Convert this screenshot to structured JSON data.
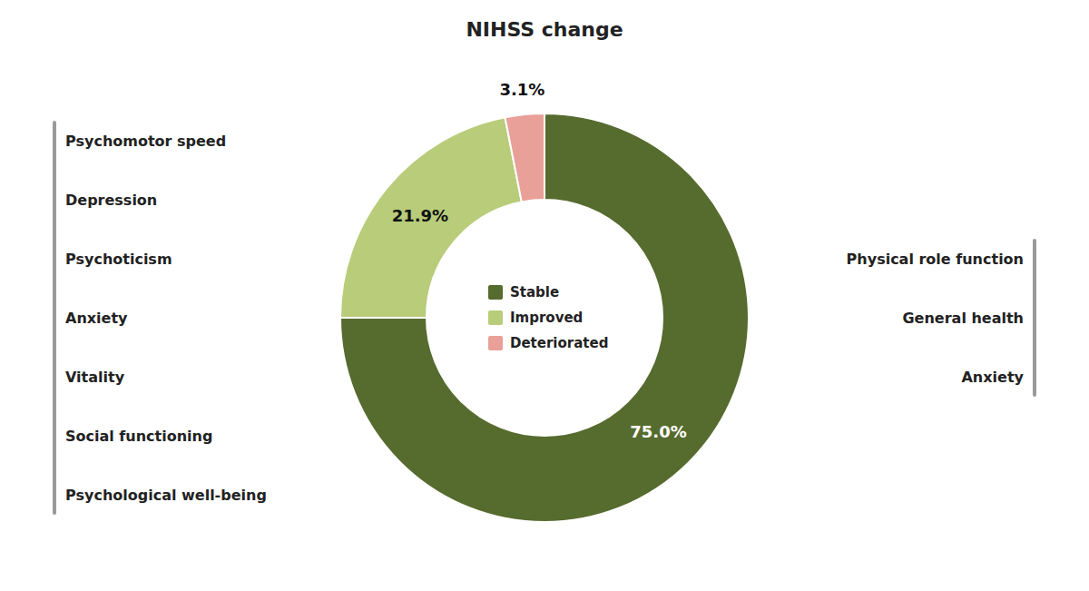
{
  "chart_data": {
    "type": "pie",
    "title": "NIHSS change",
    "categories": [
      "Stable",
      "Improved",
      "Deteriorated"
    ],
    "values": [
      75.0,
      21.9,
      3.1
    ],
    "value_labels": [
      "75.0%",
      "21.9%",
      "3.1%"
    ],
    "colors": [
      "#566B2E",
      "#B8CC7A",
      "#E8A098"
    ],
    "data_labels": true,
    "legend": "center",
    "annotations": [
      [
        "Psychomotor speed",
        "Depression",
        "Psychoticism",
        "Anxiety",
        "Vitality",
        "Social functioning",
        "Psychological well-being"
      ],
      [
        "Physical role function",
        "General health",
        "Anxiety"
      ]
    ]
  }
}
